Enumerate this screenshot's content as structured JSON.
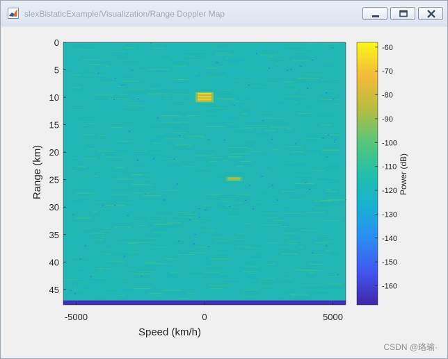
{
  "window": {
    "title": "slexBistaticExample/Visualization/Range Doppler Map",
    "icon": "matlab-icon",
    "buttons": [
      "minimize-icon",
      "maximize-icon",
      "close-icon"
    ]
  },
  "watermark": "CSDN @珞瑜·",
  "colors": {
    "background_field": "#20b6b4",
    "floor_row": "#3a31b8",
    "target": "#fbe71c",
    "colormap": [
      "#3e26a8",
      "#4256f0",
      "#2b8cf2",
      "#15b1d3",
      "#23bfaa",
      "#59c776",
      "#b9bc3e",
      "#f6ba39",
      "#f9f815"
    ]
  },
  "chart_data": {
    "type": "heatmap",
    "title": "",
    "xlabel": "Speed (km/h)",
    "ylabel": "Range (km)",
    "xlim": [
      -5500,
      5500
    ],
    "ylim": [
      0,
      47.8
    ],
    "y_reversed": true,
    "xticks": [
      -5000,
      0,
      5000
    ],
    "xtick_labels": [
      "-5000",
      "0",
      "5000"
    ],
    "yticks": [
      0,
      5,
      10,
      15,
      20,
      25,
      30,
      35,
      40,
      45
    ],
    "ytick_labels": [
      "0",
      "5",
      "10",
      "15",
      "20",
      "25",
      "30",
      "35",
      "40",
      "45"
    ],
    "colorbar": {
      "label": "Power (dB)",
      "range": [
        -168,
        -58
      ],
      "ticks": [
        -60,
        -70,
        -80,
        -90,
        -100,
        -110,
        -120,
        -130,
        -140,
        -150,
        -160
      ],
      "tick_labels": [
        "-60",
        "-70",
        "-80",
        "-90",
        "-100",
        "-110",
        "-120",
        "-130",
        "-140",
        "-150",
        "-160"
      ]
    },
    "background_level_db": -115,
    "floor_range_km": [
      47,
      47.8
    ],
    "floor_level_db": -165,
    "targets": [
      {
        "speed_kmh": 0,
        "range_km": [
          9.2,
          10.8
        ],
        "power_db": -65
      },
      {
        "speed_kmh": 1150,
        "range_km": [
          24.6,
          25.2
        ],
        "power_db": -80
      }
    ],
    "grid": false
  }
}
